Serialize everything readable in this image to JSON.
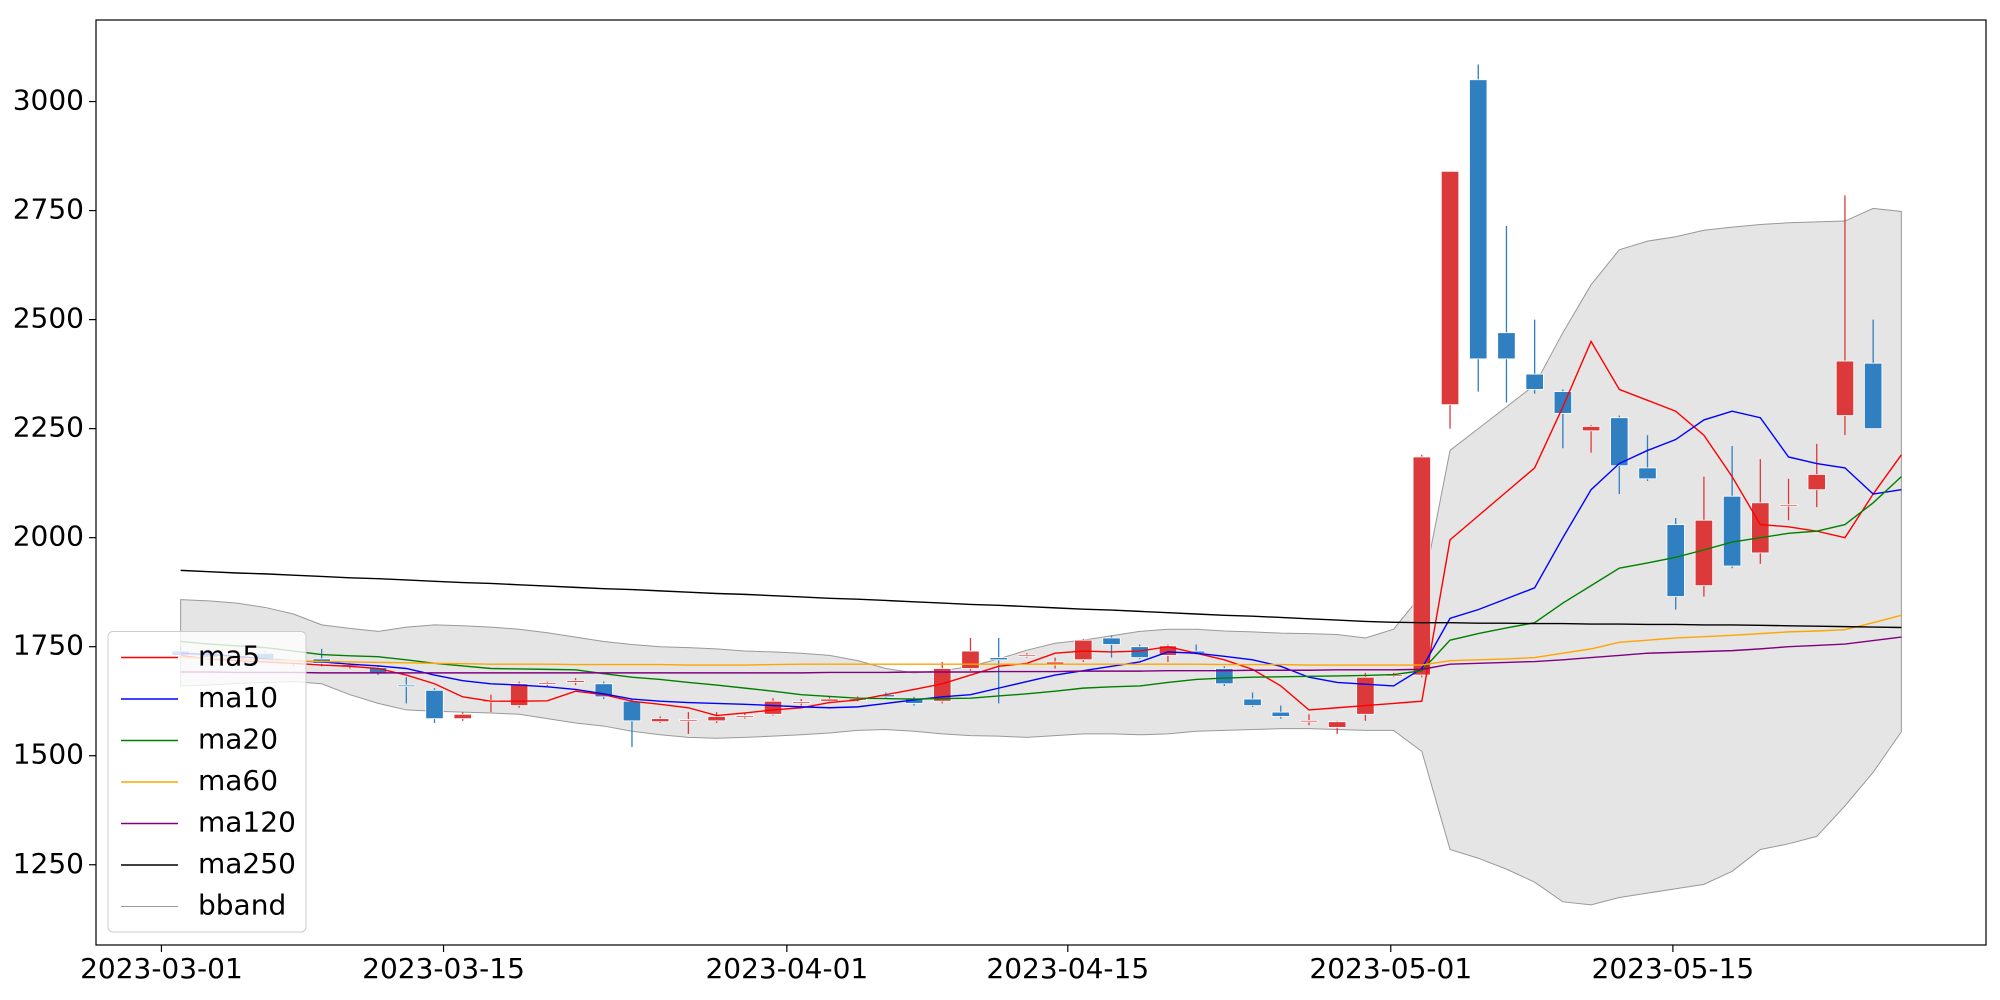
{
  "chart_data": {
    "type": "candlestick",
    "xlim": [
      -3,
      64
    ],
    "ylim": [
      1066,
      3187
    ],
    "xticks": [
      {
        "value": -0.68,
        "label": "2023-03-01"
      },
      {
        "value": 9.32,
        "label": "2023-03-15"
      },
      {
        "value": 21.49,
        "label": "2023-04-01"
      },
      {
        "value": 31.45,
        "label": "2023-04-15"
      },
      {
        "value": 42.9,
        "label": "2023-05-01"
      },
      {
        "value": 52.9,
        "label": "2023-05-15"
      }
    ],
    "yticks": [
      1250,
      1500,
      1750,
      2000,
      2250,
      2500,
      2750,
      3000
    ],
    "legend": "lower left",
    "candles": {
      "up_color": "#dc3a3a",
      "down_color": "#2f7fc1",
      "open": [
        1740,
        1740,
        1720,
        1735,
        1712,
        1722,
        1706,
        1702,
        1662,
        1650,
        1585,
        1624,
        1615,
        1664,
        1668,
        1665,
        1625,
        1578,
        1581,
        1580,
        1589,
        1595,
        1621,
        1625,
        1629,
        1640,
        1630,
        1625,
        1700,
        1725,
        1729,
        1708,
        1720,
        1770,
        1750,
        1730,
        1740,
        1700,
        1630,
        1600,
        1579,
        1565,
        1595,
        1684,
        1685,
        2305,
        3050,
        2470,
        2375,
        2335,
        2245,
        2275,
        2160,
        2030,
        1890,
        2095,
        1965,
        2073,
        2110,
        2280,
        2400,
        null
      ],
      "high": [
        1750,
        1745,
        1730,
        1740,
        1718,
        1745,
        1712,
        1708,
        1680,
        1655,
        1600,
        1640,
        1670,
        1670,
        1678,
        1670,
        1630,
        1590,
        1600,
        1600,
        1598,
        1632,
        1630,
        1635,
        1636,
        1645,
        1635,
        1715,
        1770,
        1770,
        1735,
        1725,
        1768,
        1775,
        1755,
        1755,
        1755,
        1705,
        1645,
        1615,
        1595,
        1580,
        1690,
        1690,
        2190,
        2840,
        3085,
        2715,
        2500,
        2340,
        2258,
        2280,
        2235,
        2045,
        2140,
        2210,
        2180,
        2135,
        2215,
        2785,
        2500,
        null
      ],
      "low": [
        1725,
        1720,
        1715,
        1718,
        1705,
        1705,
        1700,
        1685,
        1620,
        1575,
        1580,
        1600,
        1610,
        1660,
        1662,
        1630,
        1520,
        1575,
        1550,
        1575,
        1585,
        1592,
        1615,
        1620,
        1625,
        1632,
        1615,
        1620,
        1695,
        1620,
        1725,
        1700,
        1715,
        1725,
        1722,
        1715,
        1732,
        1660,
        1612,
        1585,
        1570,
        1550,
        1580,
        1680,
        1680,
        2250,
        2335,
        2310,
        2330,
        2205,
        2195,
        2100,
        2130,
        1835,
        1865,
        1930,
        1940,
        2040,
        2070,
        2235,
        2250,
        null
      ],
      "close": [
        1730,
        1725,
        1728,
        1722,
        1714,
        1712,
        1709,
        1690,
        1660,
        1585,
        1595,
        1627,
        1665,
        1667,
        1672,
        1635,
        1580,
        1585,
        1583,
        1590,
        1592,
        1625,
        1624,
        1630,
        1631,
        1635,
        1620,
        1700,
        1740,
        1720,
        1731,
        1715,
        1765,
        1755,
        1725,
        1752,
        1735,
        1665,
        1615,
        1590,
        1581,
        1578,
        1680,
        1686,
        2185,
        2840,
        2410,
        2410,
        2340,
        2285,
        2255,
        2165,
        2135,
        1865,
        2040,
        1935,
        2080,
        2076,
        2145,
        2405,
        2250,
        null
      ]
    },
    "series": [
      {
        "name": "ma5",
        "color": "#ff0000",
        "values": [
          1730,
          1722,
          1718,
          1715,
          1712,
          1708,
          1705,
          1700,
          1685,
          1665,
          1635,
          1625,
          1625,
          1626,
          1648,
          1640,
          1625,
          1618,
          1610,
          1592,
          1598,
          1605,
          1610,
          1622,
          1628,
          1640,
          1652,
          1665,
          1685,
          1705,
          1712,
          1735,
          1740,
          1738,
          1740,
          1750,
          1735,
          1720,
          1698,
          1660,
          1605,
          1610,
          1615,
          1620,
          1625,
          1995,
          2050,
          2105,
          2160,
          2300,
          2450,
          2340,
          2315,
          2290,
          2235,
          2140,
          2030,
          2025,
          2015,
          2000,
          2100,
          2190
        ]
      },
      {
        "name": "ma10",
        "color": "#0000ff",
        "values": [
          1735,
          1732,
          1728,
          1722,
          1718,
          1715,
          1710,
          1706,
          1700,
          1685,
          1672,
          1665,
          1662,
          1658,
          1652,
          1642,
          1630,
          1625,
          1622,
          1620,
          1618,
          1615,
          1612,
          1610,
          1612,
          1620,
          1628,
          1635,
          1640,
          1655,
          1670,
          1685,
          1695,
          1705,
          1715,
          1738,
          1735,
          1728,
          1720,
          1705,
          1680,
          1668,
          1664,
          1660,
          1700,
          1815,
          1835,
          1860,
          1885,
          2000,
          2110,
          2170,
          2200,
          2225,
          2270,
          2290,
          2275,
          2185,
          2170,
          2160,
          2100,
          2110
        ]
      },
      {
        "name": "ma20",
        "color": "#008000",
        "values": [
          1762,
          1756,
          1752,
          1748,
          1740,
          1732,
          1729,
          1727,
          1720,
          1712,
          1706,
          1700,
          1699,
          1698,
          1697,
          1688,
          1680,
          1675,
          1668,
          1662,
          1655,
          1648,
          1640,
          1636,
          1632,
          1631,
          1630,
          1631,
          1632,
          1637,
          1642,
          1648,
          1655,
          1658,
          1660,
          1668,
          1675,
          1678,
          1680,
          1681,
          1682,
          1683,
          1684,
          1686,
          1695,
          1765,
          1780,
          1793,
          1805,
          1850,
          1890,
          1930,
          1942,
          1955,
          1972,
          1990,
          2000,
          2010,
          2015,
          2030,
          2080,
          2140
        ]
      },
      {
        "name": "ma60",
        "color": "#ffa500",
        "values": [
          1725,
          1723,
          1722,
          1720,
          1718,
          1716,
          1715,
          1714,
          1713,
          1712,
          1711,
          1710,
          1710,
          1710,
          1709,
          1709,
          1709,
          1709,
          1708,
          1708,
          1708,
          1709,
          1710,
          1710,
          1710,
          1710,
          1710,
          1710,
          1710,
          1710,
          1710,
          1710,
          1710,
          1710,
          1710,
          1710,
          1710,
          1709,
          1709,
          1709,
          1708,
          1708,
          1708,
          1708,
          1708,
          1718,
          1720,
          1722,
          1725,
          1735,
          1745,
          1760,
          1765,
          1770,
          1773,
          1776,
          1780,
          1784,
          1786,
          1789,
          1805,
          1822
        ]
      },
      {
        "name": "ma120",
        "color": "#800080",
        "values": [
          1692,
          1692,
          1691,
          1691,
          1691,
          1690,
          1690,
          1690,
          1690,
          1690,
          1690,
          1690,
          1690,
          1690,
          1690,
          1690,
          1690,
          1690,
          1690,
          1690,
          1690,
          1690,
          1690,
          1691,
          1691,
          1691,
          1692,
          1692,
          1692,
          1693,
          1693,
          1693,
          1694,
          1694,
          1694,
          1695,
          1695,
          1695,
          1696,
          1696,
          1696,
          1697,
          1697,
          1697,
          1698,
          1710,
          1712,
          1714,
          1716,
          1720,
          1725,
          1730,
          1735,
          1737,
          1739,
          1741,
          1745,
          1750,
          1753,
          1756,
          1764,
          1772
        ]
      },
      {
        "name": "ma250",
        "color": "#000000",
        "values": [
          1925,
          1922,
          1919,
          1917,
          1914,
          1911,
          1908,
          1906,
          1903,
          1900,
          1897,
          1895,
          1892,
          1889,
          1886,
          1883,
          1881,
          1878,
          1875,
          1872,
          1870,
          1867,
          1864,
          1861,
          1859,
          1856,
          1853,
          1850,
          1847,
          1845,
          1842,
          1839,
          1836,
          1834,
          1831,
          1828,
          1825,
          1822,
          1820,
          1817,
          1814,
          1811,
          1808,
          1806,
          1805,
          1805,
          1804,
          1804,
          1803,
          1803,
          1802,
          1802,
          1801,
          1801,
          1800,
          1800,
          1799,
          1798,
          1797,
          1796,
          1795,
          1794
        ]
      }
    ],
    "bband": {
      "name": "bband",
      "color": "#999999",
      "fill": "#e5e5e5",
      "upper": [
        1858,
        1855,
        1850,
        1840,
        1825,
        1800,
        1792,
        1785,
        1795,
        1800,
        1798,
        1795,
        1790,
        1782,
        1772,
        1762,
        1755,
        1750,
        1748,
        1745,
        1740,
        1738,
        1735,
        1730,
        1718,
        1700,
        1690,
        1695,
        1705,
        1722,
        1742,
        1758,
        1765,
        1775,
        1785,
        1790,
        1790,
        1786,
        1784,
        1781,
        1780,
        1778,
        1770,
        1790,
        1870,
        2200,
        2250,
        2300,
        2350,
        2470,
        2580,
        2660,
        2680,
        2690,
        2705,
        2712,
        2718,
        2722,
        2724,
        2726,
        2755,
        2748
      ],
      "lower": [
        1660,
        1662,
        1666,
        1668,
        1670,
        1665,
        1640,
        1620,
        1605,
        1602,
        1600,
        1598,
        1595,
        1585,
        1575,
        1568,
        1556,
        1548,
        1542,
        1540,
        1542,
        1545,
        1548,
        1552,
        1558,
        1560,
        1556,
        1550,
        1546,
        1545,
        1542,
        1546,
        1550,
        1550,
        1548,
        1550,
        1556,
        1558,
        1560,
        1562,
        1562,
        1560,
        1558,
        1558,
        1510,
        1285,
        1265,
        1240,
        1210,
        1165,
        1158,
        1175,
        1185,
        1195,
        1205,
        1235,
        1285,
        1298,
        1315,
        1385,
        1462,
        1555
      ]
    }
  }
}
